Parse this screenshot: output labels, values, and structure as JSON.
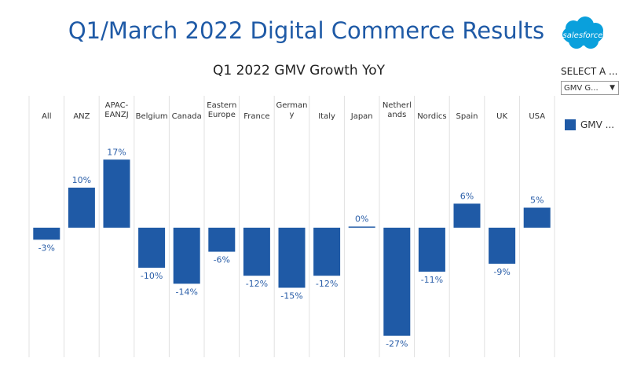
{
  "dashboard": {
    "title": "Q1/March 2022 Digital Commerce Results",
    "logo_text": "salesforce"
  },
  "filter": {
    "label": "SELECT A ...",
    "selected": "GMV G...",
    "caret": "▼"
  },
  "colors": {
    "bar": "#1f5aa6",
    "title": "#1f5aa6",
    "logo": "#0aa0dc"
  },
  "chart_data": {
    "type": "bar",
    "title": "Q1 2022 GMV Growth YoY",
    "categories": [
      "All",
      "ANZ",
      "APAC-\nEANZJ",
      "Belgium",
      "Canada",
      "Eastern\nEurope",
      "France",
      "German\ny",
      "Italy",
      "Japan",
      "Netherl\nands",
      "Nordics",
      "Spain",
      "UK",
      "USA"
    ],
    "series": [
      {
        "name": "GMV ...",
        "values": [
          -3,
          10,
          17,
          -10,
          -14,
          -6,
          -12,
          -15,
          -12,
          0,
          -27,
          -11,
          6,
          -9,
          5
        ]
      }
    ],
    "value_labels": [
      "-3%",
      "10%",
      "17%",
      "-10%",
      "-14%",
      "-6%",
      "-12%",
      "-15%",
      "-12%",
      "0%",
      "-27%",
      "-11%",
      "6%",
      "-9%",
      "5%"
    ],
    "legend_position": "right",
    "grid": false
  }
}
